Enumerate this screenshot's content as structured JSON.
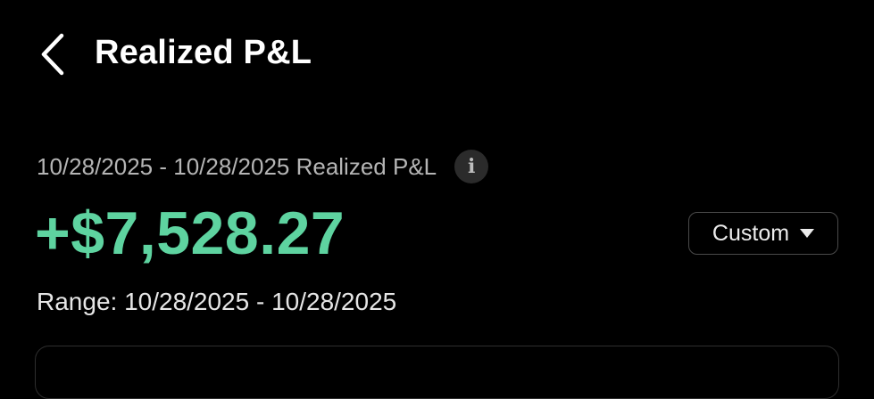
{
  "header": {
    "title": "Realized P&L",
    "back_icon": "chevron-left-icon"
  },
  "summary": {
    "label": "10/28/2025 - 10/28/2025 Realized P&L",
    "info_icon": "info-icon",
    "info_glyph": "i",
    "amount": "+$7,528.27",
    "amount_color": "#5ed3a0",
    "range": "Range: 10/28/2025 - 10/28/2025"
  },
  "period_select": {
    "selected": "Custom",
    "caret_icon": "caret-down-icon"
  }
}
